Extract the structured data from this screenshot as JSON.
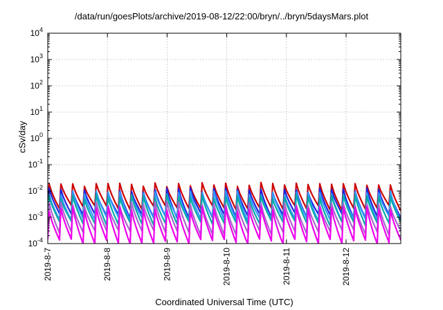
{
  "chart_data": {
    "type": "line",
    "title": "/data/run/goesPlots/archive/2019-08-12/22:00/bryn/../bryn/5daysMars.plot",
    "xlabel": "Coordinated Universal Time (UTC)",
    "ylabel": "cSv/day",
    "x_ticks": [
      "2019-8-7",
      "2019-8-8",
      "2019-8-9",
      "2019-8-10",
      "2019-8-11",
      "2019-8-12"
    ],
    "xlim": [
      "2019-08-07T00:00",
      "2019-08-12T22:00"
    ],
    "yscale": "log",
    "ylim": [
      0.0001,
      10000
    ],
    "y_ticks": [
      {
        "base": "10",
        "exp": "-4"
      },
      {
        "base": "10",
        "exp": "-3"
      },
      {
        "base": "10",
        "exp": "-2"
      },
      {
        "base": "10",
        "exp": "-1"
      },
      {
        "base": "10",
        "exp": "0"
      },
      {
        "base": "10",
        "exp": "1"
      },
      {
        "base": "10",
        "exp": "2"
      },
      {
        "base": "10",
        "exp": "3"
      },
      {
        "base": "10",
        "exp": "4"
      }
    ],
    "grid": true,
    "series": [
      {
        "color": "#cc0000",
        "peak": 0.017,
        "trough": 0.0023
      },
      {
        "color": "#2222dd",
        "peak": 0.0105,
        "trough": 0.0012
      },
      {
        "color": "#3399ff",
        "peak": 0.0085,
        "trough": 0.0009
      },
      {
        "color": "#00aaaa",
        "peak": 0.0062,
        "trough": 0.0006
      },
      {
        "color": "#aa66cc",
        "peak": 0.0032,
        "trough": 0.00028
      },
      {
        "color": "#ee00ee",
        "peak": 0.0021,
        "trough": 0.00012
      }
    ],
    "cycles_per_day": 5.1
  }
}
